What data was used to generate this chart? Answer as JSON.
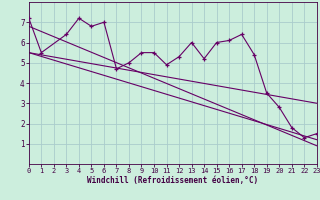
{
  "xlabel": "Windchill (Refroidissement éolien,°C)",
  "background_color": "#cceedd",
  "grid_color": "#aacccc",
  "line_color": "#660066",
  "spine_color": "#440044",
  "xlim": [
    0,
    23
  ],
  "ylim": [
    0,
    8
  ],
  "xticks": [
    0,
    1,
    2,
    3,
    4,
    5,
    6,
    7,
    8,
    9,
    10,
    11,
    12,
    13,
    14,
    15,
    16,
    17,
    18,
    19,
    20,
    21,
    22,
    23
  ],
  "yticks": [
    1,
    2,
    3,
    4,
    5,
    6,
    7
  ],
  "series1_x": [
    0,
    1,
    3,
    4,
    5,
    6,
    7,
    8,
    9,
    10,
    11,
    12,
    13,
    14,
    15,
    16,
    17,
    18,
    19,
    20,
    21,
    22,
    23
  ],
  "series1_y": [
    7.2,
    5.5,
    6.4,
    7.2,
    6.8,
    7.0,
    4.7,
    5.0,
    5.5,
    5.5,
    4.9,
    5.3,
    6.0,
    5.2,
    6.0,
    6.1,
    6.4,
    5.4,
    3.5,
    2.8,
    1.8,
    1.3,
    1.5
  ],
  "trend1_x": [
    0,
    23
  ],
  "trend1_y": [
    5.5,
    1.2
  ],
  "trend2_x": [
    0,
    23
  ],
  "trend2_y": [
    5.5,
    3.0
  ],
  "trend3_x": [
    0,
    23
  ],
  "trend3_y": [
    6.8,
    0.9
  ]
}
